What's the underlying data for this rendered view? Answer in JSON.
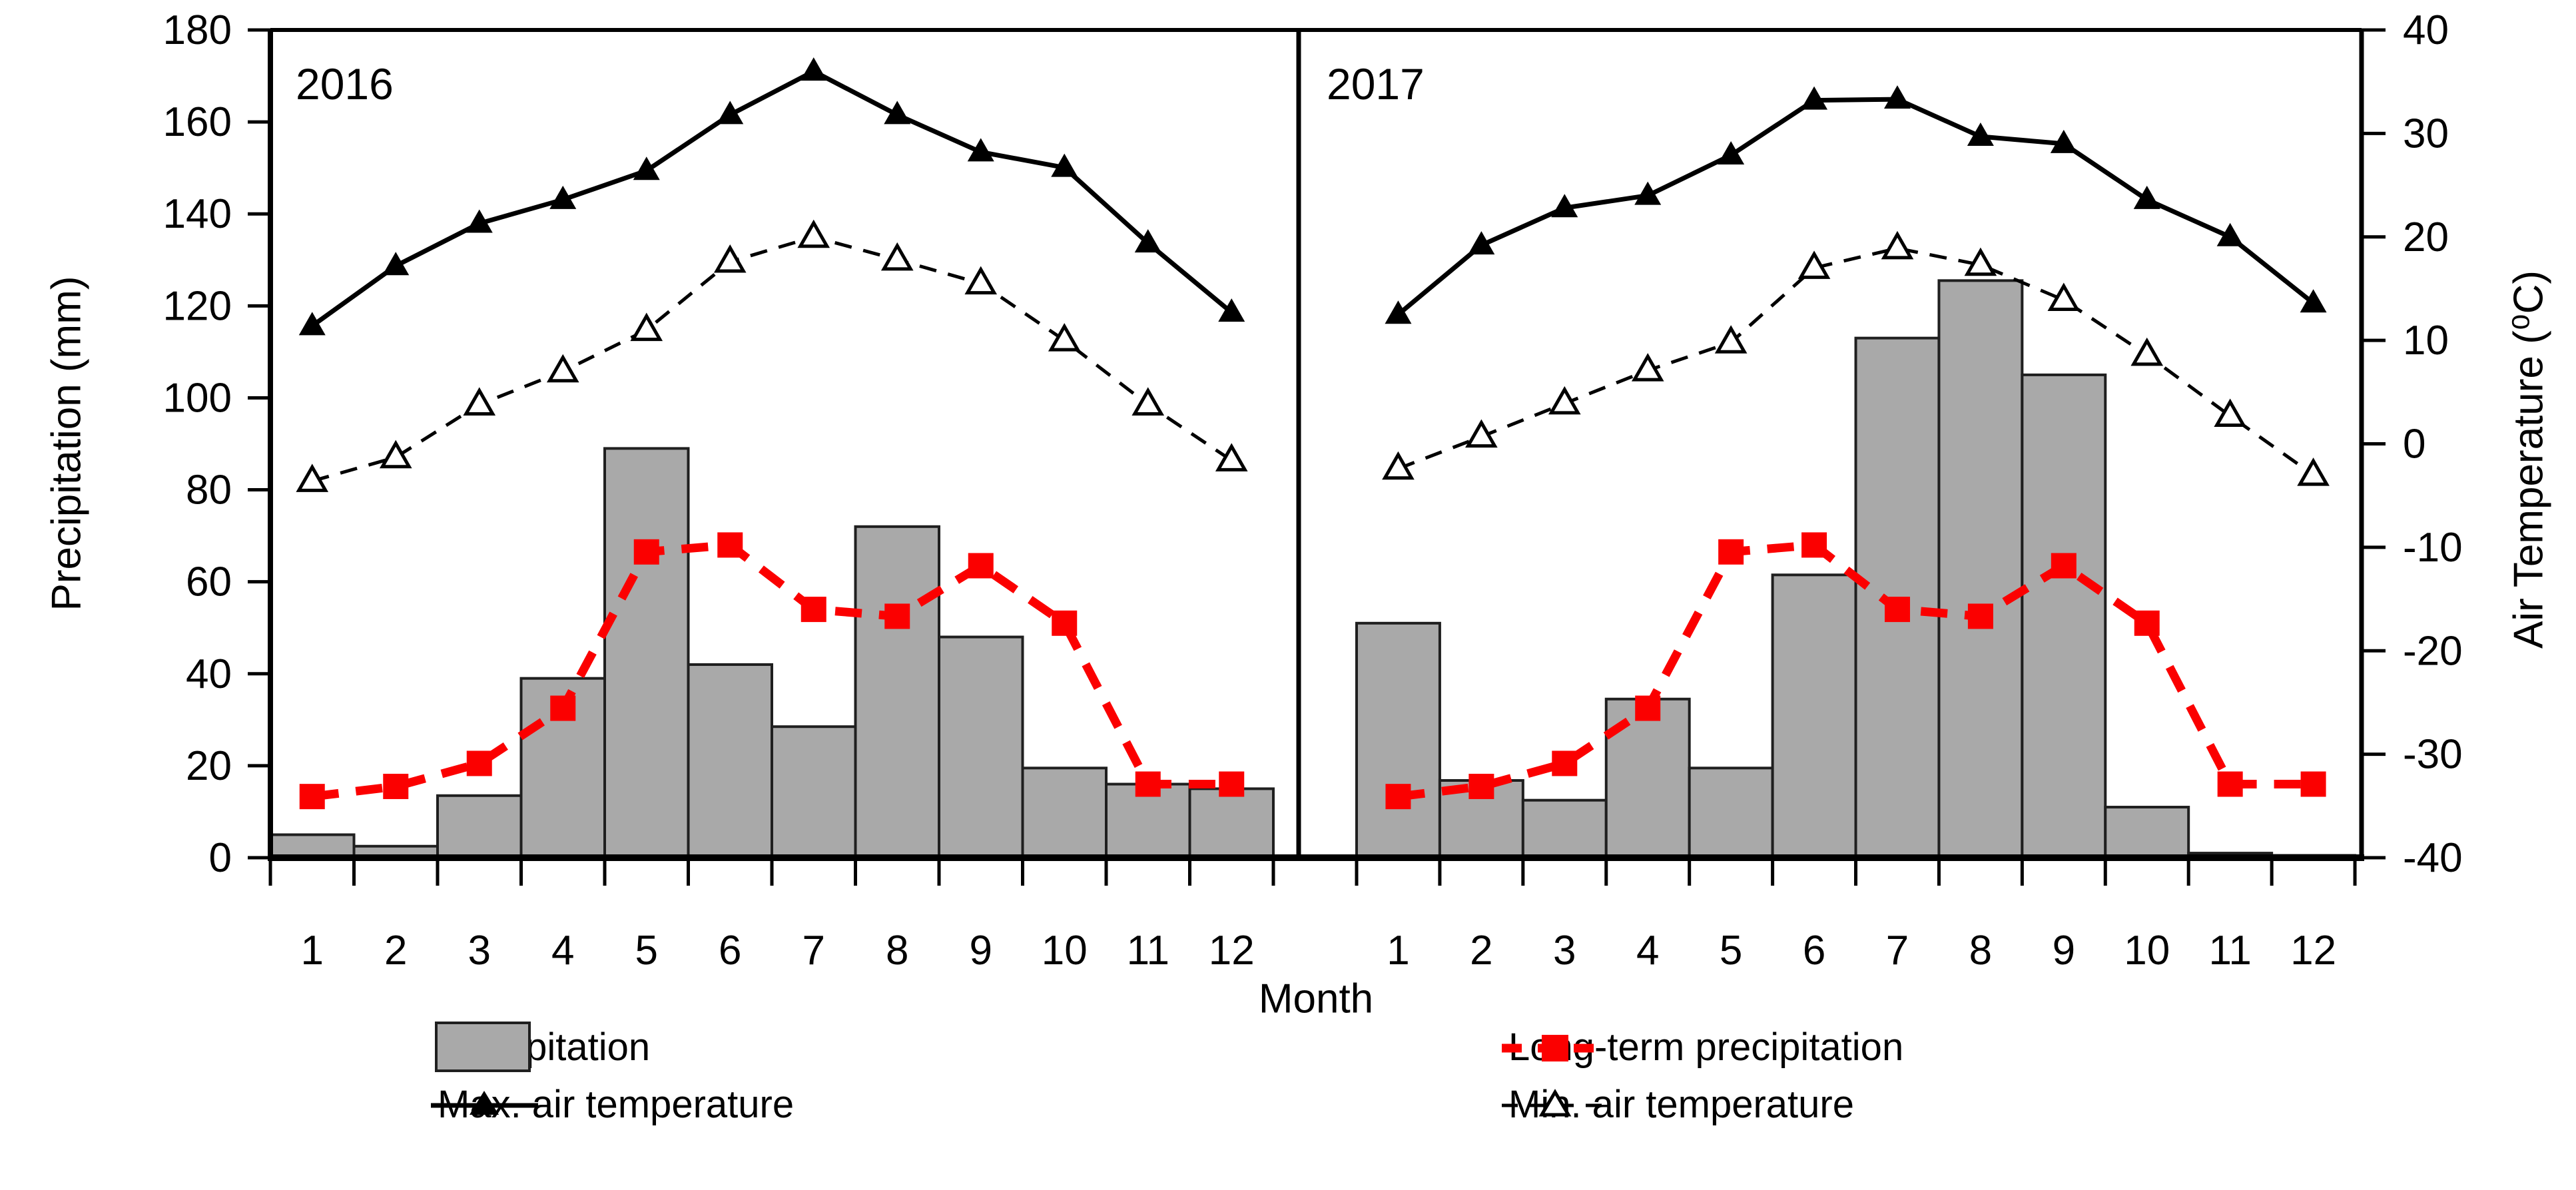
{
  "chart_data": {
    "type": "bar",
    "subtype": "dual-axis climograph, two panels sharing y-axes",
    "categories": [
      1,
      2,
      3,
      4,
      5,
      6,
      7,
      8,
      9,
      10,
      11,
      12
    ],
    "axes": {
      "left": {
        "label": "Precipitation (mm)",
        "ticks": [
          0,
          20,
          40,
          60,
          80,
          100,
          120,
          140,
          160,
          180
        ],
        "ylim": [
          0,
          180
        ]
      },
      "right": {
        "label": "Air Temperature (⁰C)",
        "ticks": [
          40,
          30,
          20,
          10,
          0,
          -10,
          -20,
          -30,
          -40
        ],
        "ylim": [
          -40,
          40
        ]
      },
      "x": {
        "label": "Month",
        "ticks": [
          1,
          2,
          3,
          4,
          5,
          6,
          7,
          8,
          9,
          10,
          11,
          12
        ]
      }
    },
    "panels": [
      {
        "year": "2016",
        "series": [
          {
            "name": "Precipitation",
            "type": "bar",
            "axis": "left",
            "values": [
              5,
              2.5,
              13.5,
              39,
              89,
              42,
              28.5,
              72,
              48,
              19.5,
              16,
              15
            ]
          },
          {
            "name": "Long-term precipitation",
            "type": "line",
            "axis": "left",
            "values": [
              13.3,
              15.5,
              20.5,
              32.5,
              66.5,
              68,
              54,
              52.5,
              63.5,
              51,
              16,
              16
            ]
          },
          {
            "name": "Max. air temperature",
            "type": "line",
            "axis": "right",
            "values": [
              11.4,
              17.2,
              21.3,
              23.6,
              26.4,
              31.8,
              36.0,
              31.8,
              28.2,
              26.7,
              19.4,
              12.7
            ]
          },
          {
            "name": "Min. air temperature",
            "type": "line",
            "axis": "right",
            "values": [
              -3.6,
              -1.3,
              3.8,
              7.0,
              11.0,
              17.6,
              20.0,
              17.8,
              15.5,
              10.0,
              3.8,
              -1.6
            ]
          }
        ]
      },
      {
        "year": "2017",
        "series": [
          {
            "name": "Precipitation",
            "type": "bar",
            "axis": "left",
            "values": [
              51,
              16.8,
              12.5,
              34.5,
              19.5,
              61.5,
              113,
              125.5,
              105,
              11,
              1,
              0.5
            ]
          },
          {
            "name": "Long-term precipitation",
            "type": "line",
            "axis": "left",
            "values": [
              13.3,
              15.5,
              20.5,
              32.5,
              66.5,
              68,
              54,
              52.5,
              63.5,
              51,
              16,
              16
            ]
          },
          {
            "name": "Max. air temperature",
            "type": "line",
            "axis": "right",
            "values": [
              12.5,
              19.2,
              22.8,
              24.0,
              27.9,
              33.2,
              33.3,
              29.7,
              29.0,
              23.6,
              20.0,
              13.6
            ]
          },
          {
            "name": "Min. air temperature",
            "type": "line",
            "axis": "right",
            "values": [
              -2.4,
              0.7,
              3.9,
              7.1,
              9.8,
              17.0,
              18.9,
              17.3,
              13.9,
              8.6,
              2.7,
              -3.0
            ]
          }
        ]
      }
    ],
    "legend_position": "bottom, two columns"
  },
  "legend": {
    "precipitation": "Precipitation",
    "long_term_precipitation": "Long-term precipitation",
    "max_air_temperature": "Max. air temperature",
    "min_air_temperature": "Min. air temperature"
  },
  "colors": {
    "bar_fill": "#a9a9a9",
    "bar_border": "#1f1f1f",
    "long_term_line": "#fb0000",
    "temperature_line": "#000000",
    "background": "#ffffff"
  }
}
